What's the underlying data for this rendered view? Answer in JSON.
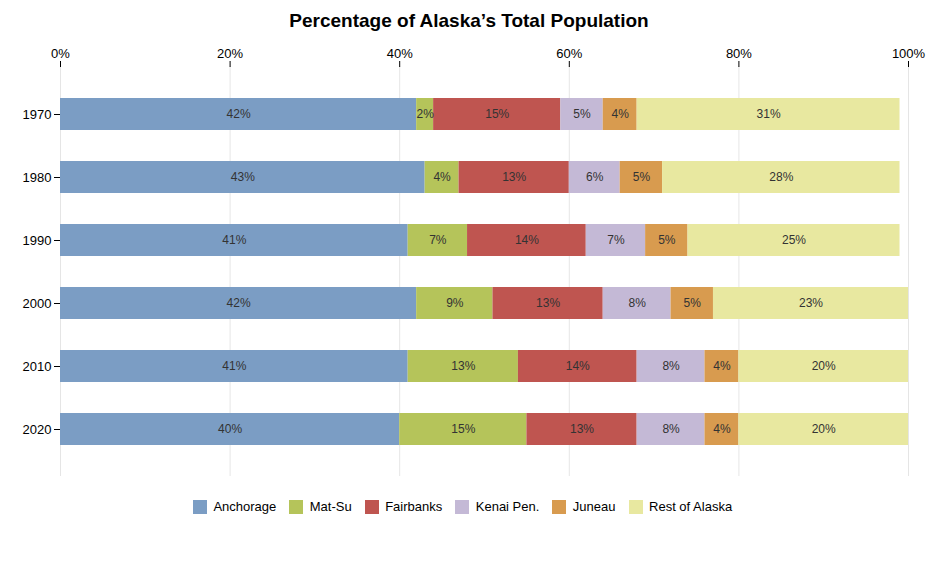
{
  "chart_data": {
    "type": "bar",
    "title": "Percentage of Alaska’s Total Population",
    "orientation": "horizontal",
    "stacked": true,
    "categories": [
      "1970",
      "1980",
      "1990",
      "2000",
      "2010",
      "2020"
    ],
    "series": [
      {
        "name": "Anchorage",
        "color": "#7b9dc4",
        "values": [
          42,
          43,
          41,
          42,
          41,
          40
        ],
        "value_labels": [
          "42%",
          "43%",
          "41%",
          "42%",
          "41%",
          "40%"
        ]
      },
      {
        "name": "Mat-Su",
        "color": "#b5c45a",
        "values": [
          2,
          4,
          7,
          9,
          13,
          15
        ],
        "value_labels": [
          "2%",
          "4%",
          "7%",
          "9%",
          "13%",
          "15%"
        ]
      },
      {
        "name": "Fairbanks",
        "color": "#bf5550",
        "values": [
          15,
          13,
          14,
          13,
          14,
          13
        ],
        "value_labels": [
          "15%",
          "13%",
          "14%",
          "13%",
          "14%",
          "13%"
        ]
      },
      {
        "name": "Kenai Pen.",
        "color": "#c4b9d6",
        "values": [
          5,
          6,
          7,
          8,
          8,
          8
        ],
        "value_labels": [
          "5%",
          "6%",
          "7%",
          "8%",
          "8%",
          "8%"
        ]
      },
      {
        "name": "Juneau",
        "color": "#d89b4f",
        "values": [
          4,
          5,
          5,
          5,
          4,
          4
        ],
        "value_labels": [
          "4%",
          "5%",
          "5%",
          "5%",
          "4%",
          "4%"
        ]
      },
      {
        "name": "Rest of Alaska",
        "color": "#e8e8a0",
        "values": [
          31,
          28,
          25,
          23,
          20,
          20
        ],
        "value_labels": [
          "31%",
          "28%",
          "25%",
          "23%",
          "20%",
          "20%"
        ]
      }
    ],
    "xlim": [
      0,
      100
    ],
    "xticks": [
      {
        "value": 0,
        "label": "0%"
      },
      {
        "value": 20,
        "label": "20%"
      },
      {
        "value": 40,
        "label": "40%"
      },
      {
        "value": 60,
        "label": "60%"
      },
      {
        "value": 80,
        "label": "80%"
      },
      {
        "value": 100,
        "label": "100%"
      }
    ],
    "grid": true,
    "data_labels": true,
    "legend": "bottom"
  }
}
